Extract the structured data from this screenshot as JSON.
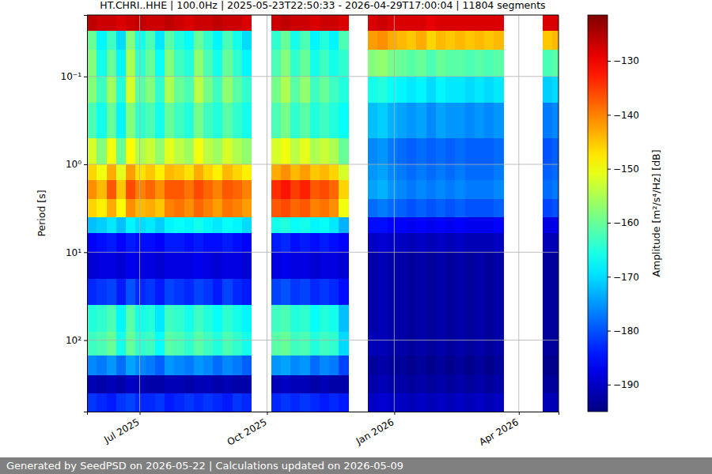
{
  "chart_data": {
    "type": "heatmap",
    "title": "HT.CHRI..HHE | 100.0Hz | 2025-05-23T22:50:33 - 2026-04-29T17:00:04 | 11804 segments",
    "y_label": "Period [s]",
    "footer": "Generated by SeedPSD on 2026-05-22 | Calculations updated on 2026-05-09",
    "log": "y",
    "grid": true,
    "xlim": [
      "2025-05-23T22:50:33",
      "2026-04-29T17:00:04"
    ],
    "xticks": [
      {
        "value": "2025-07-01",
        "label": "Jul 2025"
      },
      {
        "value": "2025-10-01",
        "label": "Oct 2025"
      },
      {
        "value": "2026-01-01",
        "label": "Jan 2026"
      },
      {
        "value": "2026-04-01",
        "label": "Apr 2026"
      }
    ],
    "ylim": [
      0.02,
      650
    ],
    "yticks": [
      {
        "value": 0.1,
        "label": "10⁻¹"
      },
      {
        "value": 1,
        "label": "10⁰"
      },
      {
        "value": 10,
        "label": "10¹"
      },
      {
        "value": 100,
        "label": "10²"
      }
    ],
    "colorbar": {
      "label": "Amplitude [m²/s⁴/Hz] [dB]",
      "lim": [
        -195,
        -121.5
      ],
      "ticks": [
        -190,
        -180,
        -170,
        -160,
        -150,
        -140,
        -130
      ]
    },
    "x_bins": [
      "2025-05-23T22:50:33",
      "2025-05-31",
      "2025-06-07",
      "2025-06-14",
      "2025-06-21",
      "2025-06-28",
      "2025-07-05",
      "2025-07-12",
      "2025-07-19",
      "2025-07-26",
      "2025-08-02",
      "2025-08-09",
      "2025-08-16",
      "2025-08-23",
      "2025-08-30",
      "2025-09-06",
      "2025-09-13",
      "2025-09-20",
      "2025-09-27",
      "2025-10-04",
      "2025-10-11",
      "2025-10-18",
      "2025-10-25",
      "2025-11-01",
      "2025-11-08",
      "2025-11-15",
      "2025-11-22",
      "2025-11-29",
      "2025-12-06",
      "2025-12-13",
      "2025-12-20",
      "2025-12-27",
      "2026-01-03",
      "2026-01-10",
      "2026-01-17",
      "2026-01-24",
      "2026-01-31",
      "2026-02-07",
      "2026-02-14",
      "2026-02-21",
      "2026-02-28",
      "2026-03-07",
      "2026-03-14",
      "2026-03-21",
      "2026-03-28",
      "2026-04-04",
      "2026-04-11",
      "2026-04-18",
      "2026-04-25",
      "2026-04-29T17:00:04"
    ],
    "y_bins": [
      0.02,
      0.03,
      0.05,
      0.1,
      0.2,
      0.5,
      1,
      1.5,
      2.5,
      4,
      6,
      10,
      20,
      40,
      80,
      150,
      250,
      400,
      650
    ],
    "values": [
      [
        -126,
        -160,
        -158,
        -158,
        -162,
        -152,
        -146,
        -141,
        -146,
        -172,
        -186,
        -189,
        -183,
        -165,
        -163,
        -176,
        -191,
        -182
      ],
      [
        -127,
        -168,
        -166,
        -163,
        -166,
        -158,
        -150,
        -144,
        -148,
        -171,
        -185,
        -188,
        -182,
        -164,
        -162,
        -177,
        -192,
        -183
      ],
      [
        -127,
        -163,
        -160,
        -156,
        -160,
        -150,
        -143,
        -137,
        -143,
        -169,
        -184,
        -188,
        -181,
        -162,
        -160,
        -175,
        -191,
        -184
      ],
      [
        -128,
        -170,
        -168,
        -165,
        -168,
        -160,
        -151,
        -145,
        -149,
        -172,
        -186,
        -189,
        -184,
        -168,
        -166,
        -178,
        -192,
        -182
      ],
      [
        -127,
        -158,
        -155,
        -152,
        -158,
        -149,
        -142,
        -136,
        -141,
        -168,
        -184,
        -187,
        -180,
        -161,
        -160,
        -174,
        -190,
        -181
      ],
      [
        -126,
        -166,
        -164,
        -161,
        -164,
        -155,
        -147,
        -140,
        -144,
        -170,
        -185,
        -188,
        -183,
        -166,
        -164,
        -176,
        -191,
        -183
      ],
      [
        -127,
        -162,
        -160,
        -158,
        -162,
        -153,
        -145,
        -138,
        -143,
        -169,
        -185,
        -188,
        -182,
        -165,
        -163,
        -177,
        -192,
        -183
      ],
      [
        -127,
        -169,
        -167,
        -164,
        -166,
        -157,
        -148,
        -141,
        -145,
        -171,
        -186,
        -189,
        -184,
        -169,
        -167,
        -179,
        -192,
        -182
      ],
      [
        -126,
        -161,
        -158,
        -155,
        -160,
        -151,
        -144,
        -137,
        -140,
        -168,
        -184,
        -188,
        -181,
        -163,
        -161,
        -175,
        -191,
        -184
      ],
      [
        -127,
        -165,
        -163,
        -160,
        -163,
        -154,
        -145,
        -137,
        -139,
        -167,
        -184,
        -188,
        -182,
        -164,
        -162,
        -176,
        -191,
        -183
      ],
      [
        -128,
        -167,
        -165,
        -162,
        -165,
        -156,
        -147,
        -139,
        -141,
        -168,
        -185,
        -188,
        -183,
        -166,
        -164,
        -177,
        -192,
        -182
      ],
      [
        -127,
        -160,
        -157,
        -154,
        -159,
        -150,
        -143,
        -136,
        -138,
        -166,
        -184,
        -187,
        -181,
        -163,
        -161,
        -175,
        -191,
        -183
      ],
      [
        -127,
        -164,
        -162,
        -159,
        -163,
        -154,
        -146,
        -138,
        -140,
        -168,
        -185,
        -188,
        -182,
        -165,
        -163,
        -176,
        -191,
        -182
      ],
      [
        -126,
        -168,
        -166,
        -163,
        -165,
        -156,
        -148,
        -140,
        -142,
        -169,
        -185,
        -189,
        -184,
        -167,
        -165,
        -178,
        -192,
        -183
      ],
      [
        -127,
        -162,
        -160,
        -157,
        -161,
        -152,
        -144,
        -137,
        -139,
        -167,
        -184,
        -188,
        -181,
        -164,
        -162,
        -176,
        -191,
        -184
      ],
      [
        -127,
        -166,
        -164,
        -161,
        -164,
        -155,
        -146,
        -138,
        -140,
        -168,
        -185,
        -188,
        -183,
        -166,
        -164,
        -177,
        -192,
        -182
      ],
      [
        -128,
        -170,
        -168,
        -164,
        -166,
        -157,
        -148,
        -140,
        -142,
        -170,
        -186,
        -189,
        -184,
        -168,
        -166,
        -179,
        -192,
        -183
      ],
      null,
      null,
      [
        -127,
        -164,
        -162,
        -159,
        -162,
        -152,
        -143,
        -134,
        -137,
        -166,
        -184,
        -188,
        -181,
        -163,
        -161,
        -175,
        -191,
        -183
      ],
      [
        -126,
        -160,
        -158,
        -155,
        -159,
        -150,
        -141,
        -132,
        -136,
        -165,
        -183,
        -187,
        -180,
        -162,
        -160,
        -174,
        -190,
        -182
      ],
      [
        -127,
        -166,
        -164,
        -161,
        -164,
        -154,
        -144,
        -135,
        -138,
        -167,
        -185,
        -188,
        -182,
        -165,
        -163,
        -176,
        -191,
        -183
      ],
      [
        -127,
        -162,
        -160,
        -157,
        -161,
        -151,
        -142,
        -133,
        -137,
        -166,
        -184,
        -188,
        -181,
        -164,
        -162,
        -175,
        -191,
        -182
      ],
      [
        -128,
        -168,
        -166,
        -163,
        -165,
        -155,
        -145,
        -137,
        -140,
        -168,
        -185,
        -189,
        -183,
        -167,
        -165,
        -178,
        -192,
        -183
      ],
      [
        -127,
        -165,
        -163,
        -160,
        -163,
        -153,
        -144,
        -136,
        -139,
        -167,
        -184,
        -188,
        -182,
        -165,
        -163,
        -176,
        -191,
        -184
      ],
      [
        -127,
        -168,
        -166,
        -163,
        -165,
        -155,
        -146,
        -138,
        -141,
        -169,
        -185,
        -188,
        -183,
        -166,
        -164,
        -177,
        -192,
        -183
      ],
      [
        -128,
        -162,
        -164,
        -165,
        -167,
        -160,
        -152,
        -146,
        -150,
        -173,
        -186,
        -189,
        -185,
        -172,
        -170,
        -181,
        -192,
        -184
      ],
      null,
      null,
      [
        -128,
        -142,
        -158,
        -166,
        -172,
        -176,
        -175,
        -174,
        -178,
        -185,
        -190,
        -192,
        -192,
        -192,
        -191,
        -193,
        -192,
        -190
      ],
      [
        -127,
        -141,
        -157,
        -165,
        -171,
        -175,
        -174,
        -173,
        -177,
        -185,
        -189,
        -191,
        -191,
        -191,
        -191,
        -192,
        -191,
        -189
      ],
      [
        -128,
        -143,
        -159,
        -167,
        -173,
        -177,
        -176,
        -175,
        -178,
        -186,
        -190,
        -192,
        -192,
        -192,
        -192,
        -193,
        -192,
        -190
      ],
      [
        -128,
        -144,
        -160,
        -168,
        -174,
        -178,
        -177,
        -176,
        -179,
        -186,
        -190,
        -192,
        -192,
        -192,
        -192,
        -193,
        -192,
        -190
      ],
      [
        -128,
        -145,
        -161,
        -169,
        -175,
        -179,
        -178,
        -177,
        -180,
        -187,
        -191,
        -193,
        -193,
        -193,
        -193,
        -194,
        -193,
        -191
      ],
      [
        -128,
        -143,
        -160,
        -168,
        -174,
        -178,
        -177,
        -176,
        -179,
        -186,
        -190,
        -192,
        -192,
        -192,
        -192,
        -193,
        -192,
        -190
      ],
      [
        -129,
        -146,
        -162,
        -170,
        -176,
        -179,
        -178,
        -177,
        -180,
        -187,
        -191,
        -193,
        -193,
        -193,
        -193,
        -194,
        -193,
        -191
      ],
      [
        -128,
        -144,
        -160,
        -168,
        -174,
        -178,
        -177,
        -176,
        -179,
        -186,
        -190,
        -192,
        -192,
        -192,
        -192,
        -193,
        -192,
        -190
      ],
      [
        -128,
        -145,
        -161,
        -169,
        -175,
        -179,
        -178,
        -177,
        -180,
        -187,
        -191,
        -193,
        -193,
        -193,
        -193,
        -194,
        -193,
        -191
      ],
      [
        -128,
        -144,
        -161,
        -169,
        -175,
        -178,
        -177,
        -176,
        -179,
        -186,
        -190,
        -192,
        -192,
        -192,
        -192,
        -193,
        -192,
        -190
      ],
      [
        -128,
        -145,
        -162,
        -170,
        -176,
        -179,
        -178,
        -177,
        -180,
        -187,
        -191,
        -193,
        -193,
        -193,
        -193,
        -194,
        -193,
        -191
      ],
      [
        -128,
        -144,
        -161,
        -169,
        -175,
        -179,
        -178,
        -177,
        -180,
        -187,
        -191,
        -192,
        -192,
        -192,
        -192,
        -193,
        -192,
        -190
      ],
      [
        -128,
        -145,
        -162,
        -170,
        -176,
        -179,
        -178,
        -177,
        -180,
        -187,
        -191,
        -193,
        -193,
        -193,
        -193,
        -194,
        -193,
        -191
      ],
      [
        -128,
        -144,
        -161,
        -169,
        -175,
        -178,
        -177,
        -176,
        -179,
        -186,
        -190,
        -192,
        -192,
        -192,
        -192,
        -193,
        -192,
        -190
      ],
      null,
      null,
      null,
      null,
      [
        -128,
        -145,
        -162,
        -171,
        -177,
        -180,
        -179,
        -178,
        -181,
        -188,
        -191,
        -193,
        -193,
        -193,
        -193,
        -194,
        -193,
        -191
      ],
      [
        -128,
        -144,
        -161,
        -170,
        -176,
        -179,
        -178,
        -177,
        -180,
        -187,
        -191,
        -193,
        -193,
        -193,
        -193,
        -194,
        -193,
        -191
      ]
    ]
  }
}
